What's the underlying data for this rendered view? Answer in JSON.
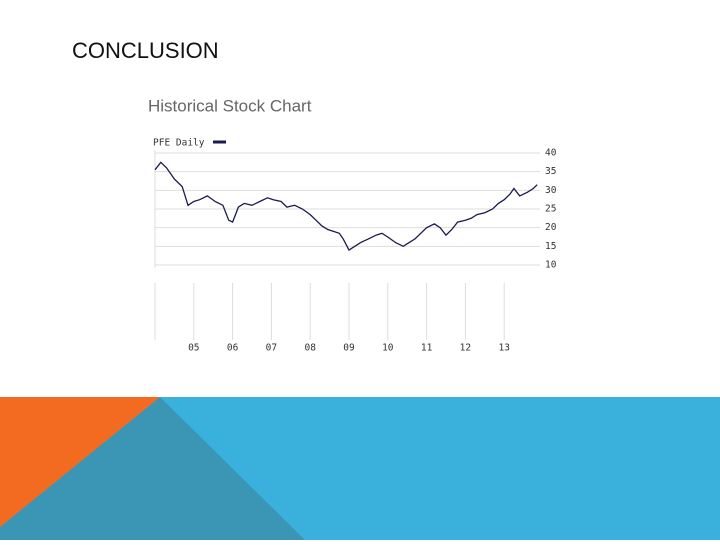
{
  "slide_title": "CONCLUSION",
  "chart_data": {
    "type": "line",
    "title": "Historical Stock Chart",
    "series": [
      {
        "name": "PFE Daily",
        "color": "#1a1a4e",
        "values": [
          35.5,
          37.5,
          36,
          33,
          31,
          26,
          27,
          27.5,
          28.5,
          27,
          26,
          22,
          21.5,
          25.5,
          26.5,
          26,
          27,
          28,
          27.5,
          27,
          25.5,
          26,
          25,
          23.5,
          22,
          20.5,
          19.5,
          19,
          18.5,
          17,
          14,
          15,
          16,
          17,
          18,
          18.5,
          17.5,
          16,
          15,
          16,
          17,
          18.5,
          20,
          21,
          20,
          18,
          19.5,
          21.5,
          22,
          22.5,
          23.5,
          24,
          25,
          26.5,
          27.5,
          29,
          30.5,
          28.5,
          29.5,
          30.5,
          31.5
        ]
      }
    ],
    "x": [
      2004.0,
      2004.15,
      2004.3,
      2004.5,
      2004.7,
      2004.85,
      2005.0,
      2005.15,
      2005.35,
      2005.55,
      2005.75,
      2005.9,
      2006.0,
      2006.15,
      2006.3,
      2006.5,
      2006.7,
      2006.9,
      2007.05,
      2007.25,
      2007.4,
      2007.6,
      2007.8,
      2008.0,
      2008.15,
      2008.3,
      2008.45,
      2008.6,
      2008.75,
      2008.85,
      2009.0,
      2009.15,
      2009.3,
      2009.5,
      2009.7,
      2009.85,
      2010.0,
      2010.2,
      2010.4,
      2010.55,
      2010.7,
      2010.85,
      2011.0,
      2011.2,
      2011.35,
      2011.5,
      2011.65,
      2011.8,
      2012.0,
      2012.15,
      2012.3,
      2012.5,
      2012.7,
      2012.85,
      2013.0,
      2013.15,
      2013.25,
      2013.4,
      2013.6,
      2013.75,
      2013.85
    ],
    "xlim": [
      2004,
      2014
    ],
    "xticks": [
      {
        "value": 2005,
        "label": "05"
      },
      {
        "value": 2006,
        "label": "06"
      },
      {
        "value": 2007,
        "label": "07"
      },
      {
        "value": 2008,
        "label": "08"
      },
      {
        "value": 2009,
        "label": "09"
      },
      {
        "value": 2010,
        "label": "10"
      },
      {
        "value": 2011,
        "label": "11"
      },
      {
        "value": 2012,
        "label": "12"
      },
      {
        "value": 2013,
        "label": "13"
      }
    ],
    "ylim": [
      10,
      40
    ],
    "yticks": [
      40,
      35,
      30,
      25,
      20,
      15,
      10
    ],
    "grid": true
  }
}
